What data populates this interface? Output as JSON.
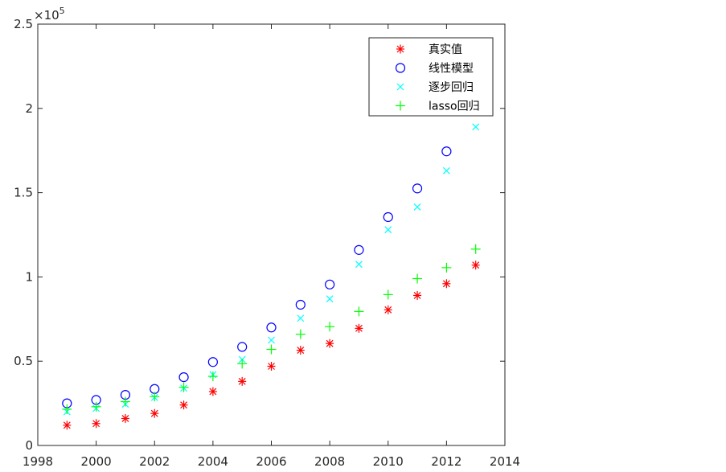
{
  "chart_data": {
    "type": "scatter",
    "title": "",
    "xlabel": "",
    "ylabel": "",
    "xlim": [
      1998,
      2014
    ],
    "ylim": [
      0,
      250000
    ],
    "x_ticks": [
      1998,
      2000,
      2002,
      2004,
      2006,
      2008,
      2010,
      2012,
      2014
    ],
    "x_tick_labels": [
      "1998",
      "2000",
      "2002",
      "2004",
      "2006",
      "2008",
      "2010",
      "2012",
      "2014"
    ],
    "y_ticks": [
      0,
      50000,
      100000,
      150000,
      200000,
      250000
    ],
    "y_tick_labels": [
      "0",
      "0.5",
      "1",
      "1.5",
      "2",
      "2.5"
    ],
    "y_exponent_base": "×10",
    "y_exponent_power": "5",
    "grid": false,
    "legend_position": "top-right",
    "series": [
      {
        "name": "真实值",
        "marker": "asterisk",
        "color": "#ff0000",
        "x": [
          1999,
          2000,
          2001,
          2002,
          2003,
          2004,
          2005,
          2006,
          2007,
          2008,
          2009,
          2010,
          2011,
          2012,
          2013
        ],
        "values": [
          12000,
          13000,
          16000,
          19000,
          24000,
          32000,
          38000,
          47000,
          56500,
          60500,
          69500,
          80500,
          89000,
          96000,
          107000
        ]
      },
      {
        "name": "线性模型",
        "marker": "circle",
        "color": "#0000ff",
        "x": [
          1999,
          2000,
          2001,
          2002,
          2003,
          2004,
          2005,
          2006,
          2007,
          2008,
          2009,
          2010,
          2011,
          2012
        ],
        "values": [
          25000,
          27000,
          30000,
          33500,
          40500,
          49500,
          58500,
          70000,
          83500,
          95500,
          116000,
          135500,
          152500,
          174500
        ]
      },
      {
        "name": "逐步回归",
        "marker": "x",
        "color": "#00ffff",
        "x": [
          1999,
          2000,
          2001,
          2002,
          2003,
          2004,
          2005,
          2006,
          2007,
          2008,
          2009,
          2010,
          2011,
          2012,
          2013
        ],
        "values": [
          20000,
          22000,
          24500,
          28500,
          34000,
          42000,
          51000,
          62500,
          75500,
          87000,
          107500,
          128000,
          141500,
          163000,
          189000
        ]
      },
      {
        "name": "lasso回归",
        "marker": "plus",
        "color": "#00ff00",
        "x": [
          1999,
          2000,
          2001,
          2002,
          2003,
          2004,
          2005,
          2006,
          2007,
          2008,
          2009,
          2010,
          2011,
          2012,
          2013
        ],
        "values": [
          21500,
          23000,
          26000,
          29000,
          34500,
          41000,
          48500,
          57000,
          66000,
          70500,
          79500,
          89500,
          99000,
          105500,
          116500
        ]
      }
    ]
  }
}
